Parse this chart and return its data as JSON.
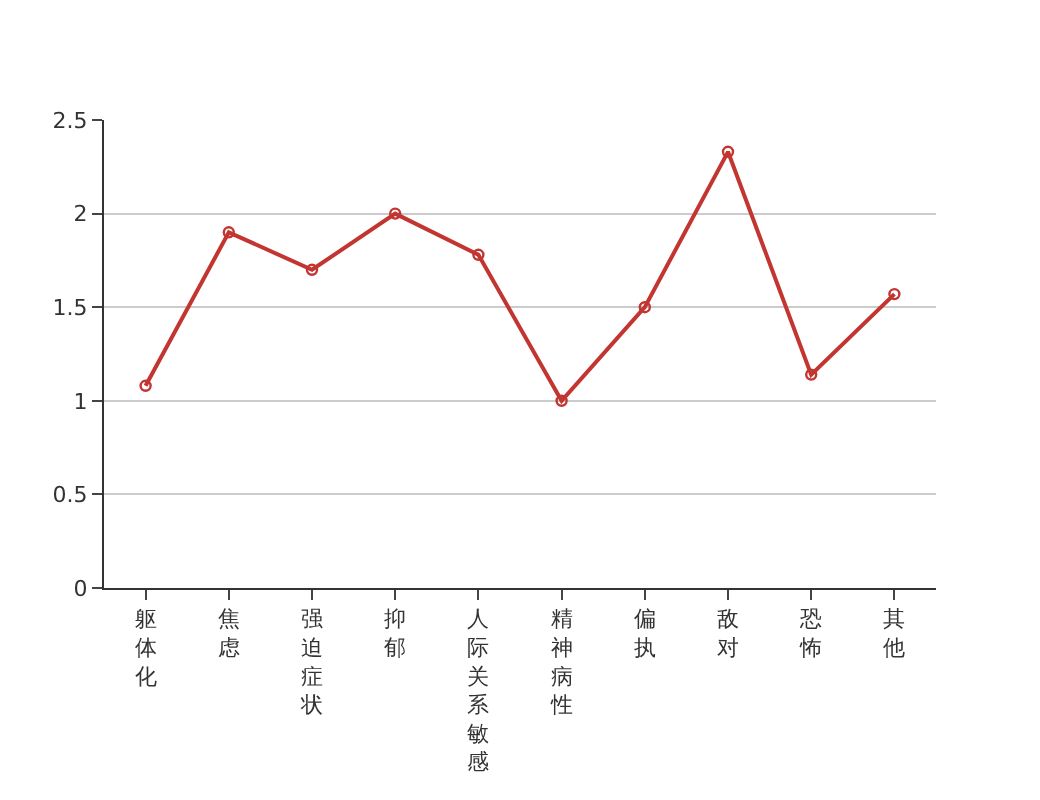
{
  "chart_data": {
    "type": "line",
    "categories": [
      "躯体化",
      "焦虑",
      "强迫症状",
      "抑郁",
      "人际关系敏感",
      "精神病性",
      "偏执",
      "敌对",
      "恐怖",
      "其他"
    ],
    "series": [
      {
        "color": "#c23531",
        "values": [
          1.08,
          1.9,
          1.7,
          2.0,
          1.78,
          1.0,
          1.5,
          2.33,
          1.14,
          1.57
        ]
      }
    ],
    "ylim": [
      0,
      2.5
    ],
    "yticks": [
      0,
      0.5,
      1,
      1.5,
      2,
      2.5
    ],
    "grid": "y",
    "legend": false,
    "marker": "circle",
    "line_style": "solid"
  }
}
